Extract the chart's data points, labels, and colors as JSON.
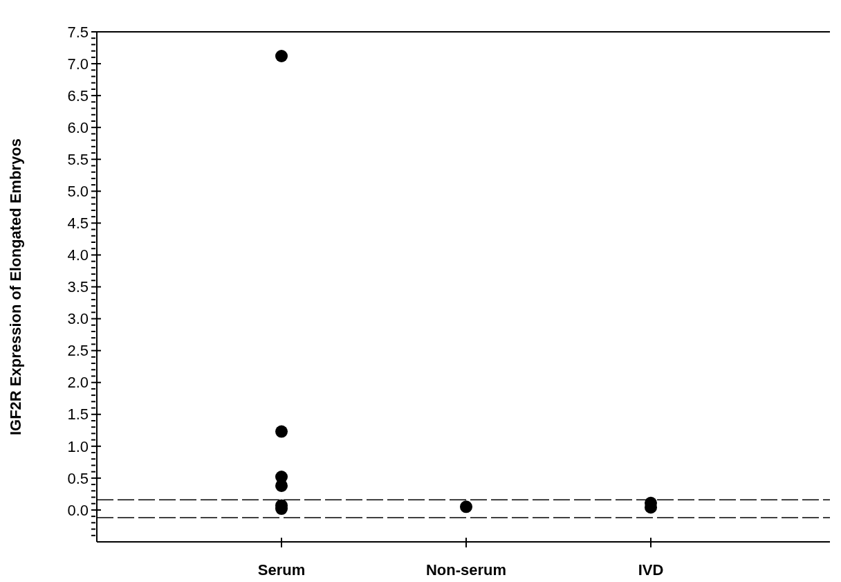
{
  "chart_data": {
    "type": "scatter",
    "ylabel": "IGF2R Expression of Elongated Embryos",
    "categories": [
      "Serum",
      "Non-serum",
      "IVD"
    ],
    "series": [
      {
        "color": "#000000",
        "x": [
          "Serum",
          "Serum",
          "Serum",
          "Serum",
          "Serum",
          "Serum",
          "Non-serum",
          "IVD",
          "IVD"
        ],
        "values": [
          7.12,
          1.23,
          0.52,
          0.38,
          0.07,
          0.02,
          0.05,
          0.11,
          0.04
        ]
      }
    ],
    "ylim": [
      -0.5,
      7.5
    ],
    "yticks": [
      {
        "value": -0.4,
        "label": null
      },
      {
        "value": -0.3,
        "label": null
      },
      {
        "value": -0.2,
        "label": null
      },
      {
        "value": -0.1,
        "label": null
      },
      {
        "value": 0,
        "label": "0.0"
      },
      {
        "value": 0.1,
        "label": null
      },
      {
        "value": 0.2,
        "label": null
      },
      {
        "value": 0.3,
        "label": null
      },
      {
        "value": 0.4,
        "label": null
      },
      {
        "value": 0.5,
        "label": "0.5"
      },
      {
        "value": 0.6,
        "label": null
      },
      {
        "value": 0.7,
        "label": null
      },
      {
        "value": 0.8,
        "label": null
      },
      {
        "value": 0.9,
        "label": null
      },
      {
        "value": 1,
        "label": "1.0"
      },
      {
        "value": 1.1,
        "label": null
      },
      {
        "value": 1.2,
        "label": null
      },
      {
        "value": 1.3,
        "label": null
      },
      {
        "value": 1.4,
        "label": null
      },
      {
        "value": 1.5,
        "label": "1.5"
      },
      {
        "value": 1.6,
        "label": null
      },
      {
        "value": 1.7,
        "label": null
      },
      {
        "value": 1.8,
        "label": null
      },
      {
        "value": 1.9,
        "label": null
      },
      {
        "value": 2,
        "label": "2.0"
      },
      {
        "value": 2.1,
        "label": null
      },
      {
        "value": 2.2,
        "label": null
      },
      {
        "value": 2.3,
        "label": null
      },
      {
        "value": 2.4,
        "label": null
      },
      {
        "value": 2.5,
        "label": "2.5"
      },
      {
        "value": 2.6,
        "label": null
      },
      {
        "value": 2.7,
        "label": null
      },
      {
        "value": 2.8,
        "label": null
      },
      {
        "value": 2.9,
        "label": null
      },
      {
        "value": 3,
        "label": "3.0"
      },
      {
        "value": 3.1,
        "label": null
      },
      {
        "value": 3.2,
        "label": null
      },
      {
        "value": 3.3,
        "label": null
      },
      {
        "value": 3.4,
        "label": null
      },
      {
        "value": 3.5,
        "label": "3.5"
      },
      {
        "value": 3.6,
        "label": null
      },
      {
        "value": 3.7,
        "label": null
      },
      {
        "value": 3.8,
        "label": null
      },
      {
        "value": 3.9,
        "label": null
      },
      {
        "value": 4,
        "label": "4.0"
      },
      {
        "value": 4.1,
        "label": null
      },
      {
        "value": 4.2,
        "label": null
      },
      {
        "value": 4.3,
        "label": null
      },
      {
        "value": 4.4,
        "label": null
      },
      {
        "value": 4.5,
        "label": "4.5"
      },
      {
        "value": 4.6,
        "label": null
      },
      {
        "value": 4.7,
        "label": null
      },
      {
        "value": 4.8,
        "label": null
      },
      {
        "value": 4.9,
        "label": null
      },
      {
        "value": 5,
        "label": "5.0"
      },
      {
        "value": 5.1,
        "label": null
      },
      {
        "value": 5.2,
        "label": null
      },
      {
        "value": 5.3,
        "label": null
      },
      {
        "value": 5.4,
        "label": null
      },
      {
        "value": 5.5,
        "label": "5.5"
      },
      {
        "value": 5.6,
        "label": null
      },
      {
        "value": 5.7,
        "label": null
      },
      {
        "value": 5.8,
        "label": null
      },
      {
        "value": 5.9,
        "label": null
      },
      {
        "value": 6,
        "label": "6.0"
      },
      {
        "value": 6.1,
        "label": null
      },
      {
        "value": 6.2,
        "label": null
      },
      {
        "value": 6.3,
        "label": null
      },
      {
        "value": 6.4,
        "label": null
      },
      {
        "value": 6.5,
        "label": "6.5"
      },
      {
        "value": 6.6,
        "label": null
      },
      {
        "value": 6.7,
        "label": null
      },
      {
        "value": 6.8,
        "label": null
      },
      {
        "value": 6.9,
        "label": null
      },
      {
        "value": 7,
        "label": "7.0"
      },
      {
        "value": 7.1,
        "label": null
      },
      {
        "value": 7.2,
        "label": null
      },
      {
        "value": 7.3,
        "label": null
      },
      {
        "value": 7.4,
        "label": null
      },
      {
        "value": 7.5,
        "label": "7.5"
      }
    ],
    "ref_lines": [
      {
        "axis": "y",
        "value": 0.16,
        "color": "#000000",
        "line_style": "dashed"
      },
      {
        "axis": "y",
        "value": -0.12,
        "color": "#000000",
        "line_style": "dashed"
      }
    ],
    "grid": false,
    "legend": false,
    "marker": "circle"
  }
}
